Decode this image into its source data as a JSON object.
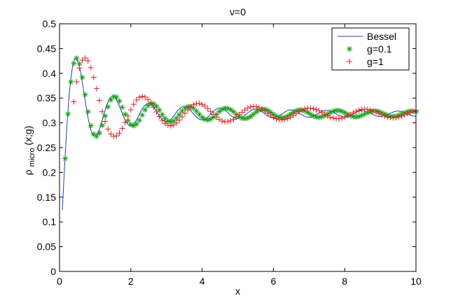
{
  "chart_data": {
    "type": "line",
    "title": "ν=0",
    "xlabel": "x",
    "ylabel_main": "ρ",
    "ylabel_sub": "micro",
    "ylabel_tail": "(x;g)",
    "xlim": [
      0,
      10
    ],
    "ylim": [
      0,
      0.5
    ],
    "xticks": [
      0,
      2,
      4,
      6,
      8,
      10
    ],
    "xtick_labels": [
      "0",
      "2",
      "4",
      "6",
      "8",
      "10"
    ],
    "yticks": [
      0,
      0.05,
      0.1,
      0.15,
      0.2,
      0.25,
      0.3,
      0.35,
      0.4,
      0.45,
      0.5
    ],
    "ytick_labels": [
      "0",
      "0.05",
      "0.1",
      "0.15",
      "0.2",
      "0.25",
      "0.3",
      "0.35",
      "0.4",
      "0.45",
      "0.5"
    ],
    "grid": false,
    "legend_position": "top-right",
    "series": [
      {
        "name": "Bessel",
        "style": "line",
        "color": "#1f3fbf",
        "model": "bessel_density",
        "scale": 1.0,
        "x_range": [
          0.08,
          10
        ]
      },
      {
        "name": "g=0.1",
        "style": "asterisk",
        "color": "#1aa01a",
        "model": "bessel_density",
        "scale": 0.962,
        "x_start": 0.16,
        "x_step": 0.08
      },
      {
        "name": "g=1",
        "style": "plus",
        "color": "#e02020",
        "model": "bessel_density",
        "scale": 0.641,
        "x_start": 0.4,
        "x_step": 0.08
      }
    ]
  }
}
